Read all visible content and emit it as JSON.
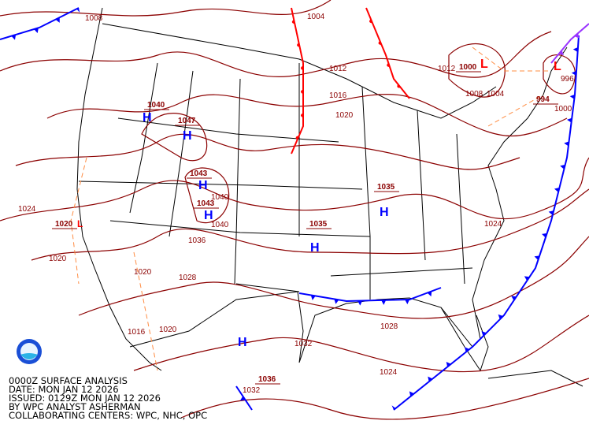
{
  "colors": {
    "isobar": "#8b0000",
    "cold_front": "#0000ff",
    "warm_front": "#ff0000",
    "occluded": "#9933ff",
    "trough": "#ff8c42",
    "high": "#0000ff",
    "low": "#ff0000",
    "border": "#000000"
  },
  "caption": [
    "0000Z SURFACE ANALYSIS",
    "DATE: MON JAN 12 2026",
    "ISSUED: 0129Z MON JAN 12 2026",
    "BY WPC ANALYST ASHERMAN",
    "COLLABORATING CENTERS: WPC, NHC, OPC"
  ],
  "logo_icon": "noaa-logo",
  "isobar_labels": [
    "1004",
    "1012",
    "1016",
    "1020",
    "1008",
    "1012",
    "1008",
    "1004",
    "996",
    "1000",
    "1024",
    "1020",
    "1020",
    "1028",
    "1036",
    "1040",
    "1040",
    "1016",
    "1020",
    "1032",
    "1028",
    "1024",
    "1024",
    "1032"
  ],
  "center_values": [
    "1040",
    "1047",
    "1043",
    "1043",
    "1035",
    "1035",
    "1020",
    "1000",
    "994",
    "1036"
  ],
  "highs": [
    "H",
    "H",
    "H",
    "H",
    "H",
    "H",
    "H"
  ],
  "lows": [
    "L",
    "L",
    "L"
  ]
}
